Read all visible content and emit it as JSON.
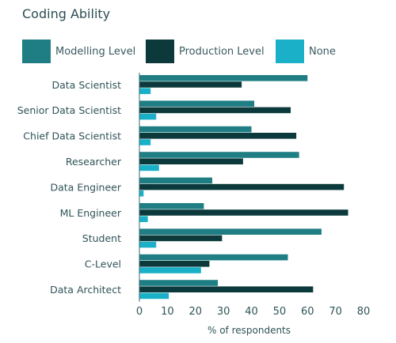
{
  "chart_data": {
    "type": "bar",
    "orientation": "horizontal",
    "title": "Coding Ability",
    "xlabel": "% of respondents",
    "ylabel": "",
    "xlim": [
      0,
      80
    ],
    "xticks": [
      "0",
      "10",
      "20",
      "30",
      "40",
      "50",
      "60",
      "70",
      "80"
    ],
    "grid": false,
    "legend_position": "top",
    "categories": [
      "Data Scientist",
      "Senior Data Scientist",
      "Chief Data Scientist",
      "Researcher",
      "Data Engineer",
      "ML Engineer",
      "Student",
      "C-Level",
      "Data Architect"
    ],
    "series": [
      {
        "name": "Modelling Level",
        "color": "#1f7e83",
        "values": [
          60,
          41,
          40,
          57,
          26,
          23,
          65,
          53,
          28
        ]
      },
      {
        "name": "Production Level",
        "color": "#0c3a3c",
        "values": [
          36.5,
          54,
          56,
          37,
          73,
          74.5,
          29.5,
          25,
          62
        ]
      },
      {
        "name": "None",
        "color": "#1ab0c8",
        "values": [
          4,
          6,
          4,
          7,
          1.5,
          3,
          6,
          22,
          10.5
        ]
      }
    ]
  }
}
